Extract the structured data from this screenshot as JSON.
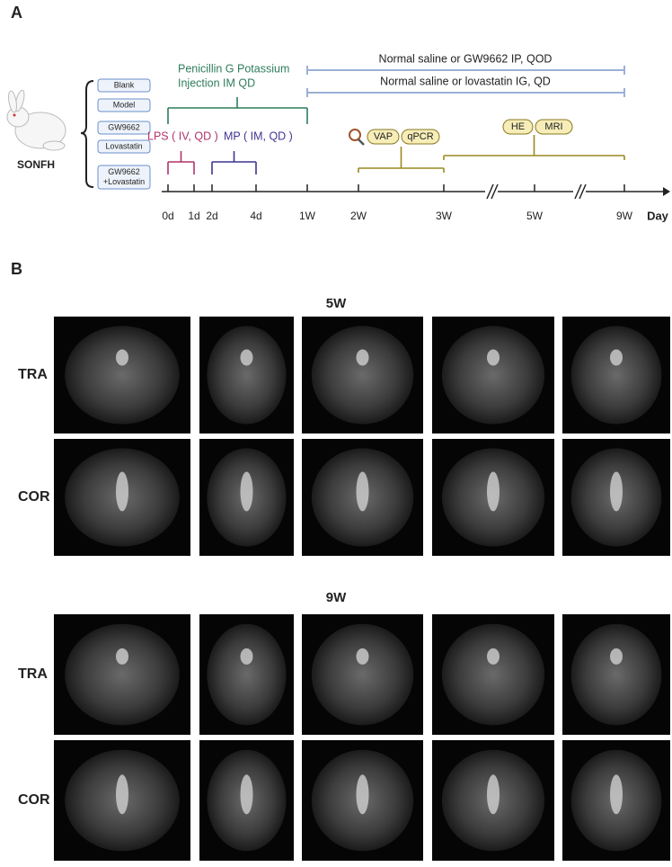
{
  "panel_a": {
    "label": "A",
    "subject": "SONFH",
    "groups": [
      [
        "Blank"
      ],
      [
        "Model"
      ],
      [
        "GW9662"
      ],
      [
        "Lovastatin"
      ],
      [
        "GW9662",
        "+Lovastatin"
      ]
    ],
    "penicillin": [
      "Penicillin G Potassium",
      "Injection IM QD"
    ],
    "saline": [
      "Normal saline or GW9662 IP, QOD",
      "Normal saline or lovastatin IG, QD"
    ],
    "lps": "LPS ( IV, QD )",
    "mp": "MP ( IM, QD )",
    "early_assays": [
      "VAP",
      "qPCR"
    ],
    "late_assays": [
      "HE",
      "MRI"
    ],
    "timeline": {
      "ticks": [
        "0d",
        "1d",
        "2d",
        "4d",
        "1W",
        "2W",
        "3W",
        "5W",
        "9W"
      ],
      "unit": "Day"
    }
  },
  "panel_b": {
    "label": "B",
    "sections": [
      {
        "title": "5W",
        "rows": [
          "TRA",
          "COR"
        ]
      },
      {
        "title": "9W",
        "rows": [
          "TRA",
          "COR"
        ]
      }
    ]
  }
}
